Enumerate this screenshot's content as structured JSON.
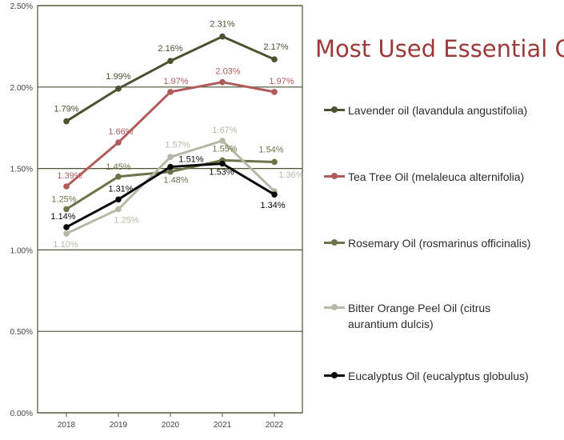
{
  "chart_data": {
    "type": "line",
    "title": "Most Used Essential Oil",
    "x": [
      "2018",
      "2019",
      "2020",
      "2021",
      "2022"
    ],
    "ylim": [
      0,
      2.5
    ],
    "yticks": [
      "0.00%",
      "0.50%",
      "1.00%",
      "1.50%",
      "2.00%",
      "2.50%"
    ],
    "ytick_values": [
      0,
      0.5,
      1.0,
      1.5,
      2.0,
      2.5
    ],
    "grid": true,
    "legend_position": "right",
    "series": [
      {
        "name": "Lavender oil (lavandula angustifolia)",
        "color": "#4a5230",
        "values": [
          1.79,
          1.99,
          2.16,
          2.31,
          2.17
        ],
        "labels": [
          "1.79%",
          "1.99%",
          "2.16%",
          "2.31%",
          "2.17%"
        ]
      },
      {
        "name": "Tea Tree Oil (melaleuca alternifolia)",
        "color": "#b05a5a",
        "values": [
          1.39,
          1.66,
          1.97,
          2.03,
          1.97
        ],
        "labels": [
          "1.39%",
          "1.66%",
          "1.97%",
          "2.03%",
          "1.97%"
        ]
      },
      {
        "name": "Rosemary Oil (rosmarinus officinalis)",
        "color": "#6d7349",
        "values": [
          1.25,
          1.45,
          1.48,
          1.55,
          1.54
        ],
        "labels": [
          "1.25%",
          "1.45%",
          "1.48%",
          "1.55%",
          "1.54%"
        ]
      },
      {
        "name": "Bitter Orange Peel Oil (citrus\naurantium dulcis)",
        "color": "#b5b8a6",
        "values": [
          1.1,
          1.25,
          1.57,
          1.67,
          1.36
        ],
        "labels": [
          "1.10%",
          "1.25%",
          "1.57%",
          "1.67%",
          "1.36%"
        ]
      },
      {
        "name": "Eucalyptus Oil (eucalyptus globulus)",
        "color": "#0a0a0a",
        "values": [
          1.14,
          1.31,
          1.51,
          1.53,
          1.34
        ],
        "labels": [
          "1.14%",
          "1.31%",
          "1.51%",
          "1.53%",
          "1.34%"
        ]
      }
    ]
  }
}
